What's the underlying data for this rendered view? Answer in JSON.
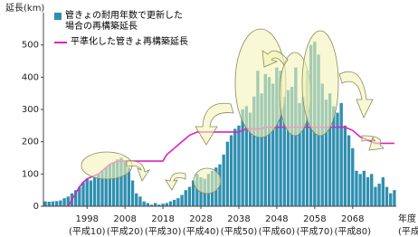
{
  "chart_data": {
    "type": "bar",
    "y_label": "延長(km)",
    "x_label": "年度",
    "x_sublabel": "(平成",
    "x": [
      1987,
      1988,
      1989,
      1990,
      1991,
      1992,
      1993,
      1994,
      1995,
      1996,
      1997,
      1998,
      1999,
      2000,
      2001,
      2002,
      2003,
      2004,
      2005,
      2006,
      2007,
      2008,
      2009,
      2010,
      2011,
      2012,
      2013,
      2014,
      2015,
      2016,
      2017,
      2018,
      2019,
      2020,
      2021,
      2022,
      2023,
      2024,
      2025,
      2026,
      2027,
      2028,
      2029,
      2030,
      2031,
      2032,
      2033,
      2034,
      2035,
      2036,
      2037,
      2038,
      2039,
      2040,
      2041,
      2042,
      2043,
      2044,
      2045,
      2046,
      2047,
      2048,
      2049,
      2050,
      2051,
      2052,
      2053,
      2054,
      2055,
      2056,
      2057,
      2058,
      2059,
      2060,
      2061,
      2062,
      2063,
      2064,
      2065,
      2066,
      2067,
      2068,
      2069,
      2070,
      2071,
      2072,
      2073,
      2074,
      2075,
      2076,
      2077,
      2078,
      2079
    ],
    "series": [
      {
        "name": "管きょの耐用年数で更新した場合の再構築延長",
        "color": "#2f8fb0",
        "values": [
          15,
          14,
          15,
          16,
          18,
          25,
          30,
          40,
          50,
          60,
          75,
          85,
          80,
          90,
          100,
          110,
          120,
          130,
          135,
          145,
          150,
          140,
          120,
          80,
          40,
          30,
          15,
          10,
          5,
          10,
          5,
          8,
          10,
          15,
          20,
          25,
          35,
          50,
          60,
          80,
          100,
          90,
          85,
          100,
          110,
          120,
          130,
          160,
          200,
          220,
          240,
          250,
          300,
          310,
          290,
          340,
          420,
          350,
          410,
          400,
          380,
          430,
          420,
          340,
          360,
          370,
          430,
          320,
          340,
          420,
          500,
          510,
          470,
          380,
          330,
          350,
          310,
          290,
          320,
          250,
          220,
          180,
          110,
          100,
          110,
          90,
          100,
          60,
          70,
          90,
          60,
          40,
          50
        ]
      },
      {
        "name": "平準化した管きょ再構築延長",
        "color": "#e020c0",
        "type": "line",
        "values": [
          null,
          null,
          null,
          null,
          null,
          null,
          0,
          20,
          40,
          60,
          75,
          85,
          90,
          95,
          100,
          110,
          120,
          130,
          135,
          140,
          140,
          140,
          140,
          140,
          140,
          140,
          140,
          140,
          140,
          140,
          140,
          140,
          160,
          170,
          180,
          190,
          200,
          210,
          220,
          225,
          230,
          230,
          230,
          230,
          230,
          230,
          230,
          230,
          230,
          230,
          230,
          230,
          235,
          240,
          240,
          240,
          240,
          240,
          245,
          245,
          245,
          245,
          245,
          245,
          245,
          245,
          245,
          245,
          245,
          245,
          245,
          245,
          245,
          245,
          245,
          245,
          245,
          245,
          245,
          245,
          240,
          235,
          225,
          215,
          210,
          205,
          200,
          195,
          195,
          195,
          195,
          195,
          195
        ]
      }
    ],
    "xlim": [
      1986.5,
      2079.5
    ],
    "xticks": [
      1998,
      2008,
      2018,
      2028,
      2038,
      2048,
      2058,
      2068
    ],
    "xtick_sublabels": [
      "(平成10)",
      "(平成20)",
      "(平成30)",
      "(平成40)",
      "(平成50)",
      "(平成60)",
      "(平成70)",
      "(平成80)"
    ],
    "ylim": [
      0,
      600
    ],
    "yticks": [
      0,
      100,
      200,
      300,
      400,
      500
    ]
  }
}
